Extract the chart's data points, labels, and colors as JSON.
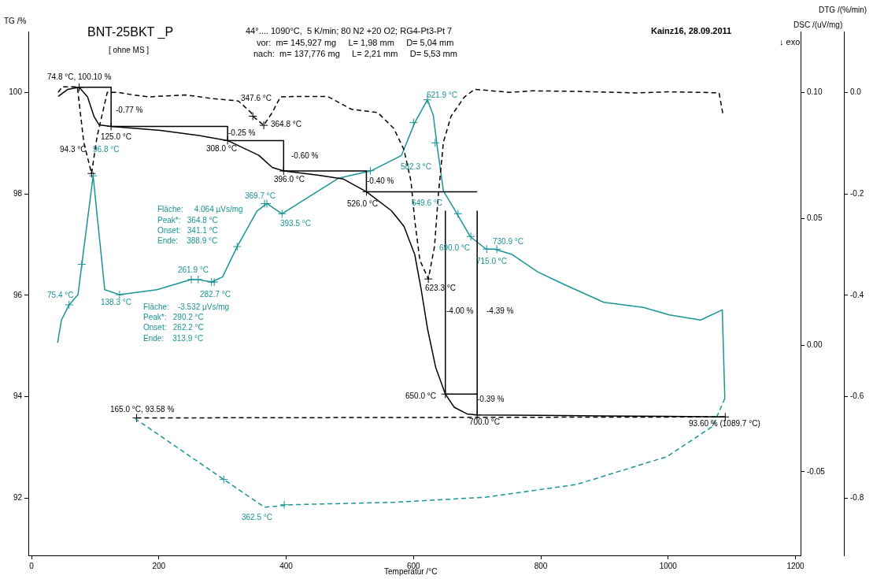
{
  "chart_data": {
    "type": "line",
    "title": "BNT-25BKT _P",
    "subtitle": "[ ohne MS ]",
    "xlabel": "Temperatur /°C",
    "ylabel": "TG /%",
    "y2label": "DSC /(uV/mg)",
    "y3label": "DTG /(%/min)",
    "xlim": [
      -5,
      1208
    ],
    "xticks": [
      0,
      200,
      400,
      600,
      800,
      1000,
      1200
    ],
    "ylim": [
      90.87,
      101.2
    ],
    "yticks": [
      92,
      94,
      96,
      98,
      100
    ],
    "y2lim": [
      -0.083,
      0.124
    ],
    "y2ticks": [
      {
        "value": -0.05,
        "label": "-0.05"
      },
      {
        "value": 0,
        "label": "0.00"
      },
      {
        "value": 0.05,
        "label": "0.05"
      },
      {
        "value": 0.1,
        "label": "0.10"
      }
    ],
    "y3lim": [
      -0.913,
      0.12
    ],
    "y3ticks": [
      {
        "value": -0.8,
        "label": "-0.8"
      },
      {
        "value": -0.6,
        "label": "-0.6"
      },
      {
        "value": -0.4,
        "label": "-0.4"
      },
      {
        "value": -0.2,
        "label": "-0.2"
      },
      {
        "value": 0,
        "label": "0.0"
      }
    ],
    "grid": false,
    "legend": false,
    "series": [
      {
        "type": "line",
        "color": "#000000",
        "line_style": "solid",
        "marker": "none",
        "x": [
          42,
          57,
          74.8,
          88,
          98,
          106,
          125,
          202,
          263,
          308,
          357,
          378,
          396,
          449,
          490,
          526,
          565,
          585,
          602,
          612,
          622,
          635,
          650,
          664,
          684,
          700,
          800,
          1000,
          1089.7
        ],
        "values": [
          99.92,
          100.06,
          100.1,
          99.91,
          99.53,
          99.36,
          99.33,
          99.25,
          99.15,
          99.05,
          98.76,
          98.52,
          98.45,
          98.37,
          98.29,
          98.04,
          97.67,
          97.36,
          96.8,
          96.12,
          95.34,
          94.57,
          94.05,
          93.79,
          93.66,
          93.64,
          93.63,
          93.61,
          93.6
        ]
      },
      {
        "type": "line",
        "color": "#000000",
        "line_style": "dashed",
        "marker": "none",
        "x": [
          165,
          1089.7
        ],
        "values": [
          93.58,
          93.6
        ]
      },
      {
        "type": "line",
        "color": "#000000",
        "line_style": "solid",
        "marker": "none",
        "x": [
          74.8,
          125,
          125,
          308,
          308,
          396,
          396,
          526,
          526,
          700
        ],
        "values": [
          100.1,
          100.1,
          99.33,
          99.33,
          99.05,
          99.05,
          98.45,
          98.45,
          98.04,
          98.04
        ]
      },
      {
        "type": "line",
        "color": "#000000",
        "line_style": "solid",
        "marker": "none",
        "x": [
          650,
          650,
          700
        ],
        "values": [
          97.66,
          94.05,
          94.05
        ]
      },
      {
        "type": "line",
        "color": "#000000",
        "line_style": "solid",
        "marker": "none",
        "x": [
          700,
          700
        ],
        "values": [
          97.66,
          93.64
        ]
      },
      {
        "type": "line",
        "color": "#000000",
        "line_style": "dashed",
        "marker": "none",
        "axis": "y3",
        "x": [
          42,
          48,
          72,
          82,
          94.3,
          103,
          119,
          135,
          160,
          184,
          242,
          283,
          325,
          345,
          347.6,
          364.8,
          378,
          391,
          419,
          465,
          502,
          544,
          569,
          585,
          596,
          602,
          610,
          623.3,
          633,
          639,
          647,
          659,
          680,
          696,
          751,
          788,
          850,
          950,
          1000,
          1050,
          1080,
          1086
        ],
        "values": [
          0,
          0.011,
          0.011,
          -0.098,
          -0.16,
          -0.087,
          0,
          0,
          -0.005,
          -0.009,
          -0.005,
          -0.012,
          -0.017,
          -0.04,
          -0.047,
          -0.065,
          -0.04,
          -0.009,
          -0.008,
          -0.008,
          -0.033,
          -0.04,
          -0.071,
          -0.113,
          -0.175,
          -0.253,
          -0.331,
          -0.368,
          -0.304,
          -0.202,
          -0.098,
          -0.047,
          -0.009,
          0.006,
          0,
          0.003,
          0.002,
          -0.001,
          0.001,
          0,
          -0.001,
          -0.043
        ]
      },
      {
        "type": "line",
        "color": "#1a9494",
        "line_style": "solid",
        "marker": "none",
        "axis": "y2",
        "x": [
          41,
          47,
          59,
          73,
          79,
          96.8,
          104,
          115,
          138.3,
          197,
          251,
          261.9,
          282.7,
          300,
          323,
          354,
          369.7,
          393.5,
          482,
          534,
          581,
          602,
          621.9,
          631,
          637,
          647,
          666,
          689,
          714,
          727,
          754,
          795,
          837,
          899,
          961,
          1002,
          1051,
          1085,
          1089
        ],
        "values": [
          0.001,
          0.01,
          0.016,
          0.02,
          0.032,
          0.067,
          0.049,
          0.022,
          0.02,
          0.022,
          0.026,
          0.026,
          0.025,
          0.027,
          0.039,
          0.053,
          0.056,
          0.052,
          0.066,
          0.069,
          0.075,
          0.088,
          0.097,
          0.091,
          0.079,
          0.061,
          0.053,
          0.043,
          0.038,
          0.038,
          0.036,
          0.029,
          0.024,
          0.017,
          0.015,
          0.012,
          0.01,
          0.014,
          -0.021
        ]
      },
      {
        "type": "line",
        "color": "#1a9494",
        "line_style": "dashed",
        "marker": "none",
        "axis": "y2",
        "x": [
          1089,
          1070,
          998,
          856,
          714,
          571,
          408,
          366,
          302,
          163
        ],
        "values": [
          -0.021,
          -0.032,
          -0.044,
          -0.055,
          -0.06,
          -0.062,
          -0.063,
          -0.064,
          -0.053,
          -0.029
        ]
      },
      {
        "type": "scatter",
        "color": "#000000",
        "marker": "cross",
        "x": [
          74.8,
          125,
          308,
          396,
          526,
          650,
          700,
          1089.7,
          165
        ],
        "values": [
          100.1,
          99.33,
          99.05,
          98.45,
          98.04,
          94.05,
          93.64,
          93.6,
          93.58
        ]
      },
      {
        "type": "scatter",
        "color": "#000000",
        "marker": "cross",
        "axis": "y3",
        "x": [
          94.3,
          347.6,
          364.8,
          623.3
        ],
        "values": [
          -0.16,
          -0.047,
          -0.065,
          -0.368
        ]
      },
      {
        "type": "scatter",
        "color": "#1a9494",
        "marker": "cross",
        "axis": "y2",
        "x": [
          59,
          79,
          96.8,
          138.3,
          251,
          261.9,
          282.7,
          287,
          323,
          366,
          369.7,
          393.5,
          532.3,
          600,
          621.9,
          634,
          670,
          690,
          715,
          730.9,
          302,
          397
        ],
        "values": [
          0.016,
          0.032,
          0.067,
          0.02,
          0.026,
          0.026,
          0.025,
          0.025,
          0.039,
          0.056,
          0.056,
          0.052,
          0.069,
          0.088,
          0.097,
          0.08,
          0.052,
          0.043,
          0.038,
          0.038,
          -0.053,
          -0.063
        ]
      }
    ],
    "annotations": [
      "44°.... 1090°C,  5 K/min; 80 N2 +20 O2; RG4-Pt3-Pt 7",
      "vor:  m= 145,927 mg     L= 1,98 mm     D= 5,04 mm",
      "nach:  m= 137,776 mg     L= 2,21 mm     D= 5,53 mm",
      "Kainz16, 28.09.2011",
      "↓ exo",
      "74.8 °C, 100.10 %",
      "-0.77 %",
      "125.0 °C",
      "347.6 °C",
      "364.8 °C",
      "-0.25 %",
      "308.0 °C",
      "-0.60 %",
      "396.0 °C",
      "94.3 °C",
      "96.8 °C",
      "369.7 °C",
      "Fläche:     4.064 µVs/mg",
      "Peak*:   364.8 °C",
      "Onset:   341.1 °C",
      "Ende:    388.9 °C",
      "393.5 °C",
      "261.9 °C",
      "282.7 °C",
      "75.4 °C",
      "138.3 °C",
      "Fläche:    -3.532 µVs/mg",
      "Peak*:   290.2 °C",
      "Onset:   262.2 °C",
      "Ende:    313.9 °C",
      "582.3 °C",
      "-0.40 %",
      "526.0 °C",
      "621.9 °C",
      "649.6 °C",
      "690.0 °C",
      "715.0 °C",
      "730.9 °C",
      "623.3 °C",
      "-4.00 %",
      "-4.39 %",
      "650.0 °C",
      "-0.39 %",
      "700.0 °C",
      "165.0 °C, 93.58 %",
      "93.60 % (1089.7 °C)",
      "362.5 °C"
    ]
  }
}
